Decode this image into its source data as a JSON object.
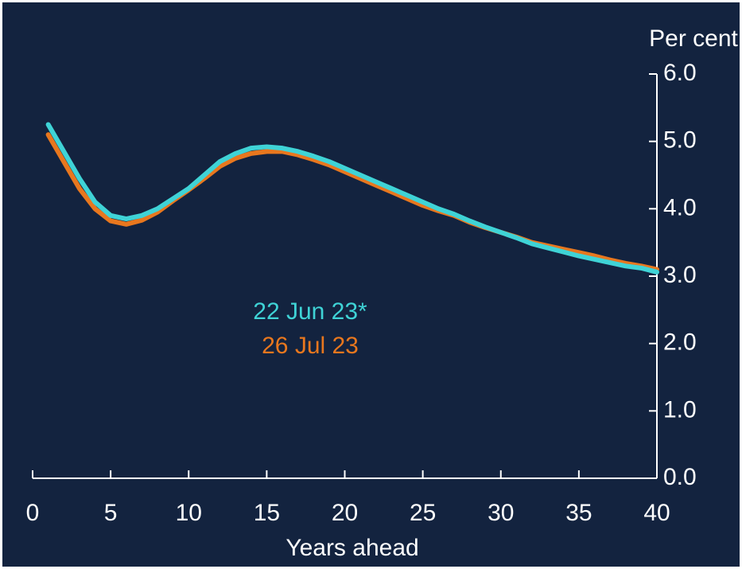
{
  "chart_data": {
    "type": "line",
    "x_label": "Years ahead",
    "y_label": "Per cent",
    "x": [
      1,
      2,
      3,
      4,
      5,
      6,
      7,
      8,
      9,
      10,
      11,
      12,
      13,
      14,
      15,
      16,
      17,
      18,
      19,
      20,
      21,
      22,
      23,
      24,
      25,
      26,
      27,
      28,
      29,
      30,
      31,
      32,
      33,
      34,
      35,
      36,
      37,
      38,
      39,
      40
    ],
    "series": [
      {
        "name": "26 Jul 23",
        "color": "#e8771e",
        "values": [
          5.1,
          4.7,
          4.3,
          4.0,
          3.82,
          3.77,
          3.83,
          3.95,
          4.12,
          4.28,
          4.45,
          4.63,
          4.75,
          4.82,
          4.85,
          4.85,
          4.8,
          4.73,
          4.65,
          4.55,
          4.45,
          4.35,
          4.25,
          4.15,
          4.05,
          3.97,
          3.9,
          3.8,
          3.72,
          3.65,
          3.58,
          3.5,
          3.45,
          3.4,
          3.35,
          3.3,
          3.24,
          3.19,
          3.15,
          3.1
        ]
      },
      {
        "name": "22 Jun 23*",
        "color": "#3fd3d6",
        "values": [
          5.25,
          4.85,
          4.45,
          4.1,
          3.9,
          3.85,
          3.9,
          4.0,
          4.15,
          4.3,
          4.5,
          4.7,
          4.82,
          4.9,
          4.92,
          4.9,
          4.85,
          4.78,
          4.7,
          4.6,
          4.5,
          4.4,
          4.3,
          4.2,
          4.1,
          4.0,
          3.92,
          3.82,
          3.73,
          3.65,
          3.57,
          3.48,
          3.42,
          3.36,
          3.3,
          3.25,
          3.2,
          3.15,
          3.12,
          3.06
        ]
      }
    ],
    "xlim": [
      0,
      40
    ],
    "xticks": [
      0,
      5,
      10,
      15,
      20,
      25,
      30,
      35,
      40
    ],
    "ylim": [
      0,
      6
    ],
    "yticks": [
      {
        "value": 0,
        "label": "0.0"
      },
      {
        "value": 1,
        "label": "1.0"
      },
      {
        "value": 2,
        "label": "2.0"
      },
      {
        "value": 3,
        "label": "3.0"
      },
      {
        "value": 4,
        "label": "4.0"
      },
      {
        "value": 5,
        "label": "5.0"
      },
      {
        "value": 6,
        "label": "6.0"
      }
    ],
    "y_axis_side": "right",
    "background": "#13233f"
  }
}
